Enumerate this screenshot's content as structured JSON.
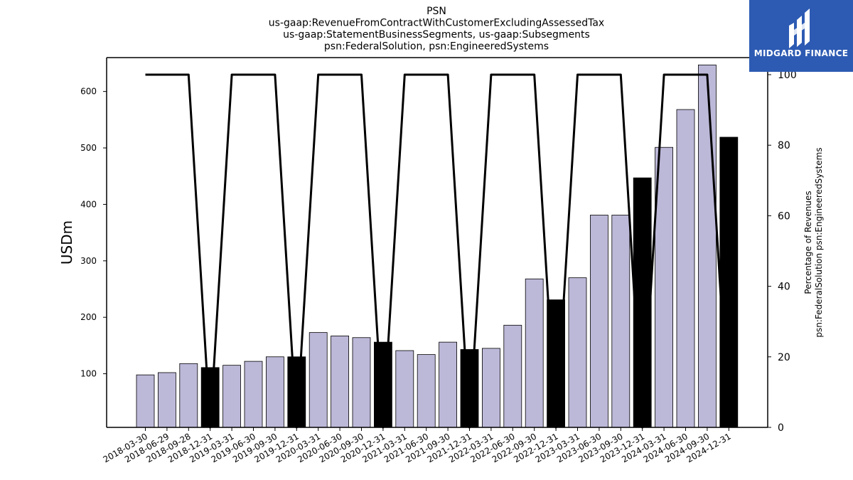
{
  "chart_data": {
    "type": "bar",
    "title_lines": [
      "PSN",
      "us-gaap:RevenueFromContractWithCustomerExcludingAssessedTax",
      "us-gaap:StatementBusinessSegments, us-gaap:Subsegments",
      "psn:FederalSolution, psn:EngineeredSystems"
    ],
    "ylabel": "USDm",
    "y2label_lines": [
      "Percentage of Revenues",
      "psn:FederalSolution psn:EngineeredSystems"
    ],
    "ylim": [
      5,
      660
    ],
    "y2lim": [
      0,
      100
    ],
    "yticks": [
      100,
      200,
      300,
      400,
      500,
      600
    ],
    "y2ticks": [
      0,
      20,
      40,
      60,
      80,
      100
    ],
    "categories": [
      "2018-03-30",
      "2018-06-29",
      "2018-09-28",
      "2018-12-31",
      "2019-03-31",
      "2019-06-30",
      "2019-09-30",
      "2019-12-31",
      "2020-03-31",
      "2020-06-30",
      "2020-09-30",
      "2020-12-31",
      "2021-03-31",
      "2021-06-30",
      "2021-09-30",
      "2021-12-31",
      "2022-03-31",
      "2022-06-30",
      "2022-09-30",
      "2022-12-31",
      "2023-03-31",
      "2023-06-30",
      "2023-09-30",
      "2023-12-31",
      "2024-03-31",
      "2024-06-30",
      "2024-09-30",
      "2024-12-31"
    ],
    "series": [
      {
        "type": "bar",
        "values": [
          98,
          102,
          118,
          111,
          115,
          122,
          130,
          130,
          173,
          167,
          164,
          156,
          141,
          134,
          156,
          143,
          145,
          186,
          268,
          231,
          270,
          381,
          381,
          447,
          501,
          568,
          647,
          519
        ],
        "annual_flags": [
          false,
          false,
          false,
          true,
          false,
          false,
          false,
          true,
          false,
          false,
          false,
          true,
          false,
          false,
          false,
          true,
          false,
          false,
          false,
          true,
          false,
          false,
          false,
          true,
          false,
          false,
          false,
          true
        ]
      },
      {
        "type": "line",
        "axis": "right",
        "values": [
          100,
          100,
          100,
          0,
          100,
          100,
          100,
          0,
          100,
          100,
          100,
          0,
          100,
          100,
          100,
          0,
          100,
          100,
          100,
          0,
          100,
          100,
          100,
          0,
          100,
          100,
          100,
          0
        ]
      }
    ],
    "colors": {
      "quarter_bar": "#bcb8d8",
      "annual_bar": "#000000",
      "line": "#000000"
    }
  },
  "logo": {
    "text": "MIDGARD FINANCE",
    "icon": "midgard-logo-icon",
    "color": "#2d5bb3"
  }
}
